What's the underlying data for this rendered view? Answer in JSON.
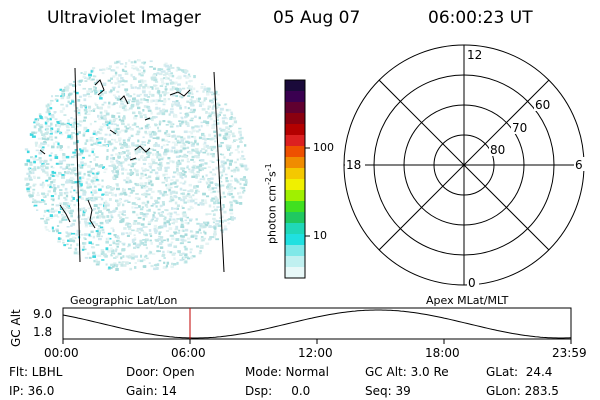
{
  "header": {
    "title": "Ultraviolet Imager",
    "date": "05 Aug 07",
    "time": "06:00:23 UT"
  },
  "colorbar": {
    "unit_label": "photon cm",
    "unit_sup1": "-2",
    "unit_mid": "s",
    "unit_sup2": "-1",
    "tick_100": "100",
    "tick_10": "10",
    "colors": [
      "#1a0a3a",
      "#3a0050",
      "#600030",
      "#8a0010",
      "#b40000",
      "#dc2020",
      "#ee5000",
      "#f08c00",
      "#f4c800",
      "#f0f000",
      "#a0f000",
      "#40e020",
      "#20c860",
      "#20d8b8",
      "#20e0e0",
      "#80e8e8",
      "#c0f0f0",
      "#e8f8f8"
    ]
  },
  "polar": {
    "mlt_12": "12",
    "mlt_18": "18",
    "mlt_6": "6",
    "mlt_0": "0",
    "lat_60": "60",
    "lat_70": "70",
    "lat_80": "80"
  },
  "orbit": {
    "left_label": "Geographic Lat/Lon",
    "right_label": "Apex MLat/MLT",
    "y_axis_label": "GC Alt",
    "y_top": "9.0",
    "y_bottom": "1.8",
    "x_ticks": [
      "00:00",
      "06:00",
      "12:00",
      "18:00",
      "23:59"
    ],
    "current_time_fraction": 0.25
  },
  "info": {
    "row1": {
      "flt": "Flt: LBHL",
      "door": "Door: Open",
      "mode": "Mode: Normal",
      "gcalt": "GC Alt: 3.0 Re",
      "glat": "GLat:  24.4"
    },
    "row2": {
      "ip": "IP: 36.0",
      "gain": "Gain: 14",
      "dsp": "Dsp:     0.0",
      "seq": "Seq: 39",
      "glon": "GLon: 283.5"
    }
  }
}
